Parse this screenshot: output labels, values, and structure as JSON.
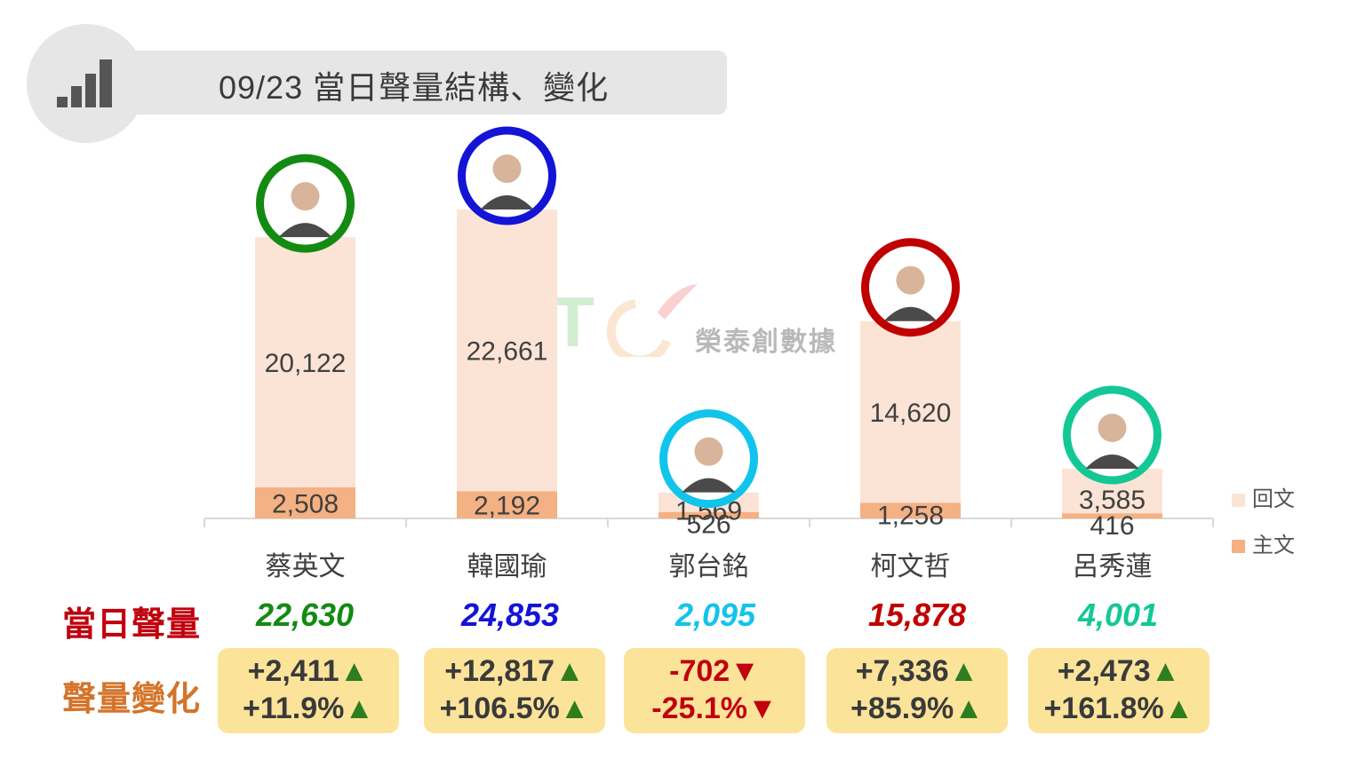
{
  "header": {
    "title": "09/23 當日聲量結構、變化",
    "icon": "signal-bars-icon"
  },
  "watermark": {
    "text": "榮泰創數據"
  },
  "colors": {
    "reply": "#fbe4d6",
    "main": "#f4b183",
    "axis": "#d9d9d9",
    "green_arrow": "#2e7d1f",
    "red": "#c0000f",
    "change_bg": "#fbe49a"
  },
  "legend": {
    "reply": "回文",
    "main": "主文"
  },
  "rows": {
    "total_label": "當日聲量",
    "change_label": "聲量變化"
  },
  "chart_data": {
    "type": "bar",
    "stacked": true,
    "categories": [
      "蔡英文",
      "韓國瑜",
      "郭台銘",
      "柯文哲",
      "呂秀蓮"
    ],
    "series": [
      {
        "name": "主文",
        "values": [
          2508,
          2192,
          526,
          1258,
          416
        ]
      },
      {
        "name": "回文",
        "values": [
          20122,
          22661,
          1569,
          14620,
          3585
        ]
      }
    ],
    "value_labels": {
      "main": [
        "2,508",
        "2,192",
        "526",
        "1,258",
        "416"
      ],
      "reply": [
        "20,122",
        "22,661",
        "1,569",
        "14,620",
        "3,585"
      ]
    },
    "ylim": [
      0,
      25000
    ],
    "legend_position": "right",
    "grid": false
  },
  "candidates": [
    {
      "name": "蔡英文",
      "ring": "#138a12",
      "total": "22,630",
      "change_abs": "+2,411▲",
      "change_pct": "+11.9%▲",
      "direction": "up"
    },
    {
      "name": "韓國瑜",
      "ring": "#1414d6",
      "total": "24,853",
      "change_abs": "+12,817▲",
      "change_pct": "+106.5%▲",
      "direction": "up"
    },
    {
      "name": "郭台銘",
      "ring": "#11c4ec",
      "total": "2,095",
      "change_abs": "-702▼",
      "change_pct": "-25.1%▼",
      "direction": "down"
    },
    {
      "name": "柯文哲",
      "ring": "#c00000",
      "total": "15,878",
      "change_abs": "+7,336▲",
      "change_pct": "+85.9%▲",
      "direction": "up"
    },
    {
      "name": "呂秀蓮",
      "ring": "#14c896",
      "total": "4,001",
      "change_abs": "+2,473▲",
      "change_pct": "+161.8%▲",
      "direction": "up"
    }
  ]
}
